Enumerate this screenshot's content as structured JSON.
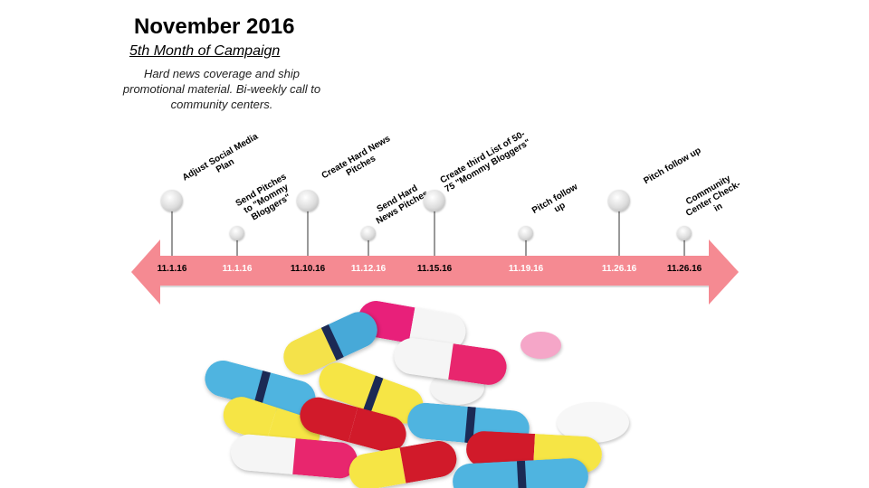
{
  "slide": {
    "title": "November 2016",
    "subtitle": "5th Month of Campaign",
    "description": "Hard news coverage and ship promotional material. Bi-weekly call to community centers."
  },
  "colors": {
    "arrow": "#f58a92",
    "date_dark": "#000000",
    "date_light": "#ffffff"
  },
  "timeline": [
    {
      "date": "11.1.16",
      "label": "Adjust Social Media Plan",
      "pin": "large",
      "date_color": "dark"
    },
    {
      "date": "11.1.16",
      "label": "Send Pitches to \"Mommy Bloggers\"",
      "pin": "small",
      "date_color": "light"
    },
    {
      "date": "11.10.16",
      "label": "Create Hard News Pitches",
      "pin": "large",
      "date_color": "dark"
    },
    {
      "date": "11.12.16",
      "label": "Send Hard News Pitches",
      "pin": "small",
      "date_color": "light"
    },
    {
      "date": "11.15.16",
      "label": "Create third List of 50-75 \"Mommy Bloggers\"",
      "pin": "large",
      "date_color": "dark"
    },
    {
      "date": "11.19.16",
      "label": "Pitch follow up",
      "pin": "small",
      "date_color": "light"
    },
    {
      "date": "11.26.16",
      "label": "Pitch follow up",
      "pin": "large",
      "date_color": "light"
    },
    {
      "date": "11.26.16",
      "label": "Community Center Check-in",
      "pin": "small",
      "date_color": "dark"
    }
  ]
}
